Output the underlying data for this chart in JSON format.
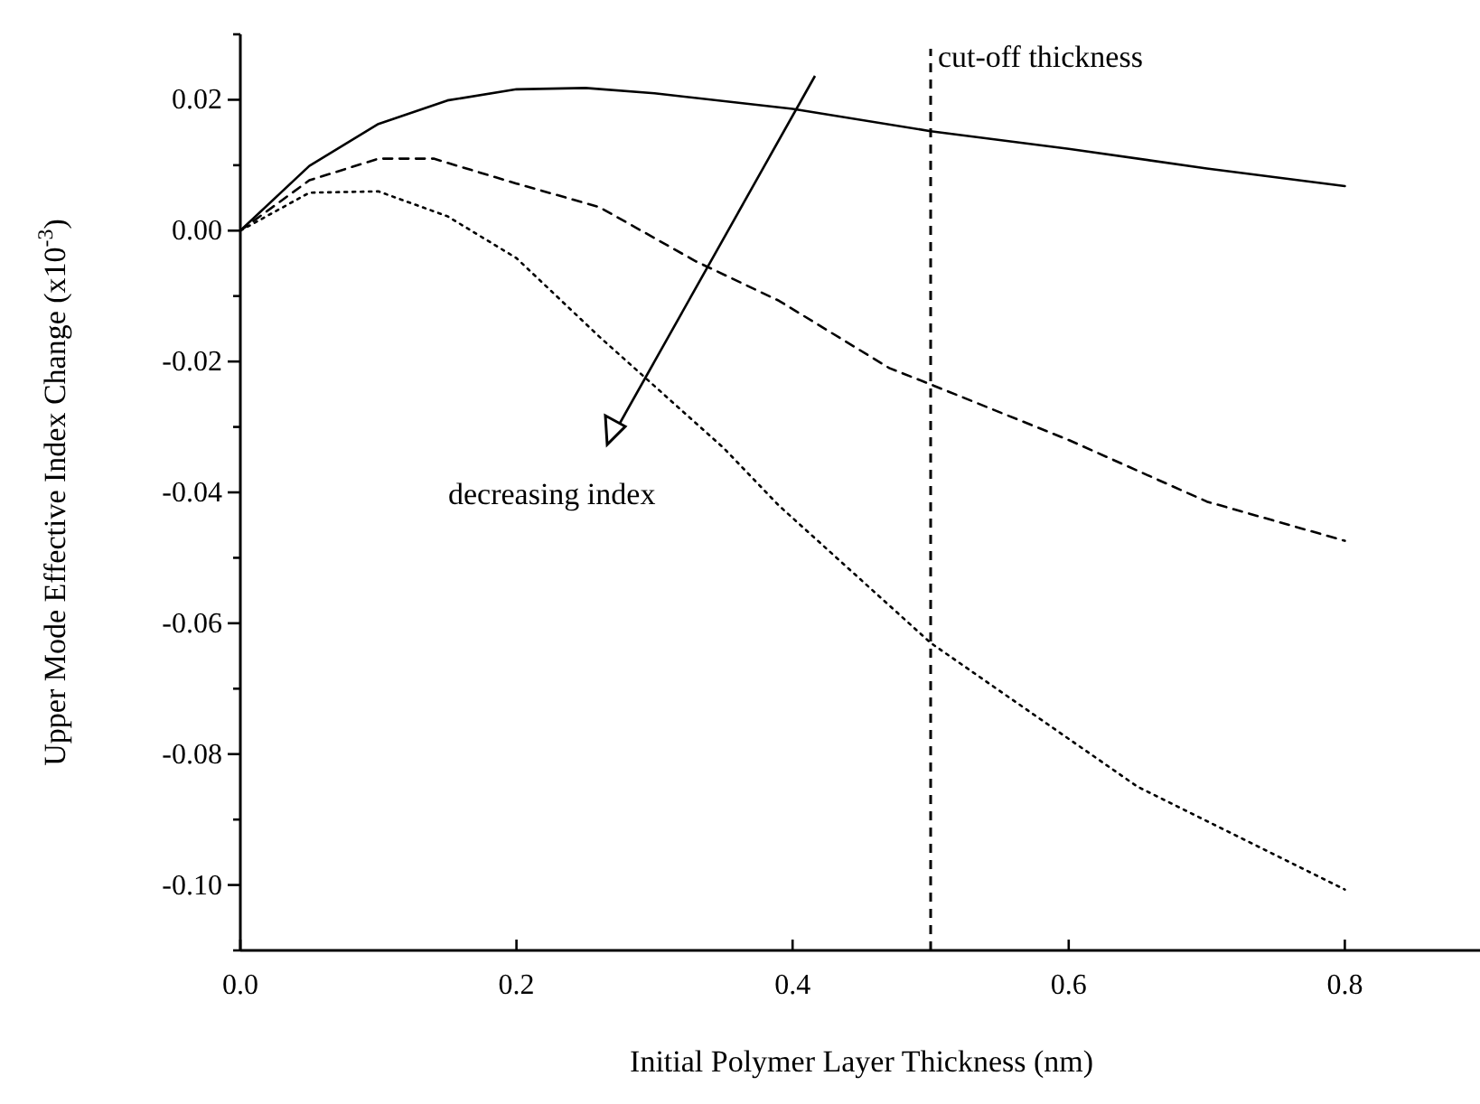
{
  "chart_data": {
    "type": "line",
    "xlabel": "Initial Polymer Layer Thickness (nm)",
    "ylabel": "Upper Mode Effective Index Change (x10$^{-3}$)",
    "xlim": [
      0,
      0.9
    ],
    "ylim": [
      -0.11,
      0.03
    ],
    "xticks": [
      {
        "value": 0,
        "label": "0.0"
      },
      {
        "value": 0.2,
        "label": "0.2"
      },
      {
        "value": 0.4,
        "label": "0.4"
      },
      {
        "value": 0.6,
        "label": "0.6"
      },
      {
        "value": 0.8,
        "label": "0.8"
      }
    ],
    "yticks": [
      {
        "value": 0.03,
        "label": null
      },
      {
        "value": 0.02,
        "label": "0.02"
      },
      {
        "value": 0.01,
        "label": null
      },
      {
        "value": 0,
        "label": "0.00"
      },
      {
        "value": -0.01,
        "label": null
      },
      {
        "value": -0.02,
        "label": "-0.02"
      },
      {
        "value": -0.03,
        "label": null
      },
      {
        "value": -0.04,
        "label": "-0.04"
      },
      {
        "value": -0.05,
        "label": null
      },
      {
        "value": -0.06,
        "label": "-0.06"
      },
      {
        "value": -0.07,
        "label": null
      },
      {
        "value": -0.08,
        "label": "-0.08"
      },
      {
        "value": -0.09,
        "label": null
      },
      {
        "value": -0.1,
        "label": "-0.10"
      },
      {
        "value": -0.11,
        "label": null
      }
    ],
    "grid": false,
    "marker": "none",
    "series": [
      {
        "color": "#000000",
        "line_style": "solid",
        "x": [
          0,
          0.05,
          0.1,
          0.15,
          0.2,
          0.25,
          0.3,
          0.4,
          0.5,
          0.6,
          0.7,
          0.8
        ],
        "values": [
          0,
          0.0099,
          0.0163,
          0.0199,
          0.0216,
          0.0218,
          0.021,
          0.0186,
          0.0152,
          0.0125,
          0.0095,
          0.0068
        ]
      },
      {
        "color": "#000000",
        "line_style": "dashed",
        "x": [
          0,
          0.05,
          0.1,
          0.14,
          0.2,
          0.26,
          0.33,
          0.39,
          0.47,
          0.5,
          0.6,
          0.7,
          0.8
        ],
        "values": [
          0,
          0.0077,
          0.011,
          0.011,
          0.0072,
          0.0036,
          -0.0047,
          -0.0107,
          -0.021,
          -0.0235,
          -0.032,
          -0.0414,
          -0.0474
        ]
      },
      {
        "color": "#000000",
        "line_style": "dotted",
        "x": [
          0,
          0.05,
          0.1,
          0.15,
          0.2,
          0.26,
          0.35,
          0.39,
          0.5,
          0.65,
          0.8
        ],
        "values": [
          0,
          0.0058,
          0.006,
          0.0022,
          -0.0042,
          -0.0162,
          -0.0332,
          -0.042,
          -0.063,
          -0.085,
          -0.1007
        ]
      }
    ],
    "ref_lines": [
      {
        "axis": "x",
        "value": 0.5,
        "label": "cut-off thickness",
        "color": "#000000",
        "line_style": "dashed"
      }
    ],
    "annotations": [
      "decreasing index"
    ]
  }
}
